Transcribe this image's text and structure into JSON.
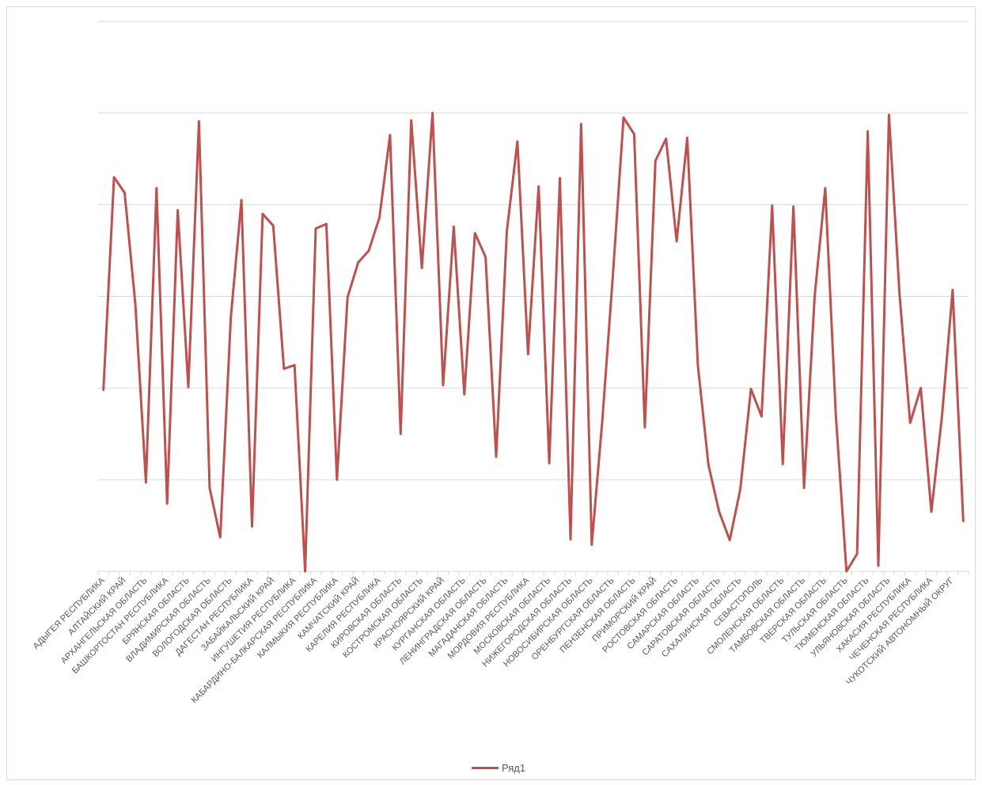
{
  "chart_data": {
    "type": "line",
    "title": "",
    "xlabel": "",
    "ylabel": "",
    "ylim": [
      0,
      6
    ],
    "grid": true,
    "legend_position": "bottom",
    "line_color": "#c0504d",
    "grid_color": "#d9d9d9",
    "label_color": "#595959",
    "tick_labels_shown": [
      "АДЫГЕЯ РЕСПУБЛИКА",
      "АЛТАЙСКИЙ КРАЙ",
      "АРХАНГЕЛЬСКАЯ ОБЛАСТЬ",
      "БАШКОРТОСТАН РЕСПУБЛИКА",
      "БРЯНСКАЯ ОБЛАСТЬ",
      "ВЛАДИМИРСКАЯ ОБЛАСТЬ",
      "ВОЛОГОДСКАЯ ОБЛАСТЬ",
      "ДАГЕСТАН РЕСПУБЛИКА",
      "ЗАБАЙКАЛЬСКИЙ КРАЙ",
      "ИНГУШЕТИЯ РЕСПУБЛИКА",
      "КАБАРДИНО-БАЛКАРСКАЯ РЕСПУБЛИКА",
      "КАЛМЫКИЯ РЕСПУБЛИКА",
      "КАМЧАТСКИЙ КРАЙ",
      "КАРЕЛИЯ РЕСПУБЛИКА",
      "КИРОВСКАЯ ОБЛАСТЬ",
      "КОСТРОМСКАЯ ОБЛАСТЬ",
      "КРАСНОЯРСКИЙ КРАЙ",
      "КУРГАНСКАЯ ОБЛАСТЬ",
      "ЛЕНИНГРАДСКАЯ ОБЛАСТЬ",
      "МАГАДАНСКАЯ ОБЛАСТЬ",
      "МОРДОВИЯ РЕСПУБЛИКА",
      "МОСКОВСКАЯ ОБЛАСТЬ",
      "НИЖЕГОРОДСКАЯ ОБЛАСТЬ",
      "НОВОСИБИРСКАЯ ОБЛАСТЬ",
      "ОРЕНБУРГСКАЯ ОБЛАСТЬ",
      "ПЕНЗЕНСКАЯ ОБЛАСТЬ",
      "ПРИМОРСКИЙ КРАЙ",
      "РОСТОВСКАЯ ОБЛАСТЬ",
      "САМАРСКАЯ ОБЛАСТЬ",
      "САРАТОВСКАЯ ОБЛАСТЬ",
      "САХАЛИНСКАЯ ОБЛАСТЬ",
      "СЕВАСТОПОЛЬ",
      "СМОЛЕНСКАЯ ОБЛАСТЬ",
      "ТАМБОВСКАЯ ОБЛАСТЬ",
      "ТВЕРСКАЯ ОБЛАСТЬ",
      "ТУЛЬСКАЯ ОБЛАСТЬ",
      "ТЮМЕНСКАЯ ОБЛАСТЬ",
      "УЛЬЯНОВСКАЯ ОБЛАСТЬ",
      "ХАКАСИЯ РЕСПУБЛИКА",
      "ЧЕЧЕНСКАЯ РЕСПУБЛИКА",
      "ЧУКОТСКИЙ АВТОНОМНЫЙ ОКРУГ"
    ],
    "series": [
      {
        "name": "Ряд1",
        "values": [
          1.98,
          4.3,
          4.13,
          2.92,
          0.97,
          4.18,
          0.74,
          3.94,
          2.01,
          4.91,
          0.91,
          0.37,
          2.77,
          4.05,
          0.49,
          3.9,
          3.77,
          2.21,
          2.25,
          0,
          3.74,
          3.79,
          1.0,
          2.99,
          3.37,
          3.5,
          3.86,
          4.76,
          1.5,
          4.92,
          3.31,
          5.0,
          2.03,
          3.76,
          1.93,
          3.69,
          3.43,
          1.25,
          3.71,
          4.69,
          2.37,
          4.2,
          1.18,
          4.29,
          0.35,
          4.88,
          0.29,
          1.65,
          3.24,
          4.95,
          4.77,
          1.57,
          4.48,
          4.72,
          3.6,
          4.73,
          2.25,
          1.16,
          0.65,
          0.34,
          0.9,
          1.99,
          1.69,
          3.99,
          1.17,
          3.98,
          0.91,
          3.0,
          4.18,
          1.7,
          0,
          0.19,
          4.8,
          0.06,
          4.98,
          3.02,
          1.62,
          2.0,
          0.65,
          1.7,
          3.07,
          0.55
        ]
      }
    ]
  },
  "legend": {
    "series_name": "Ряд1"
  }
}
